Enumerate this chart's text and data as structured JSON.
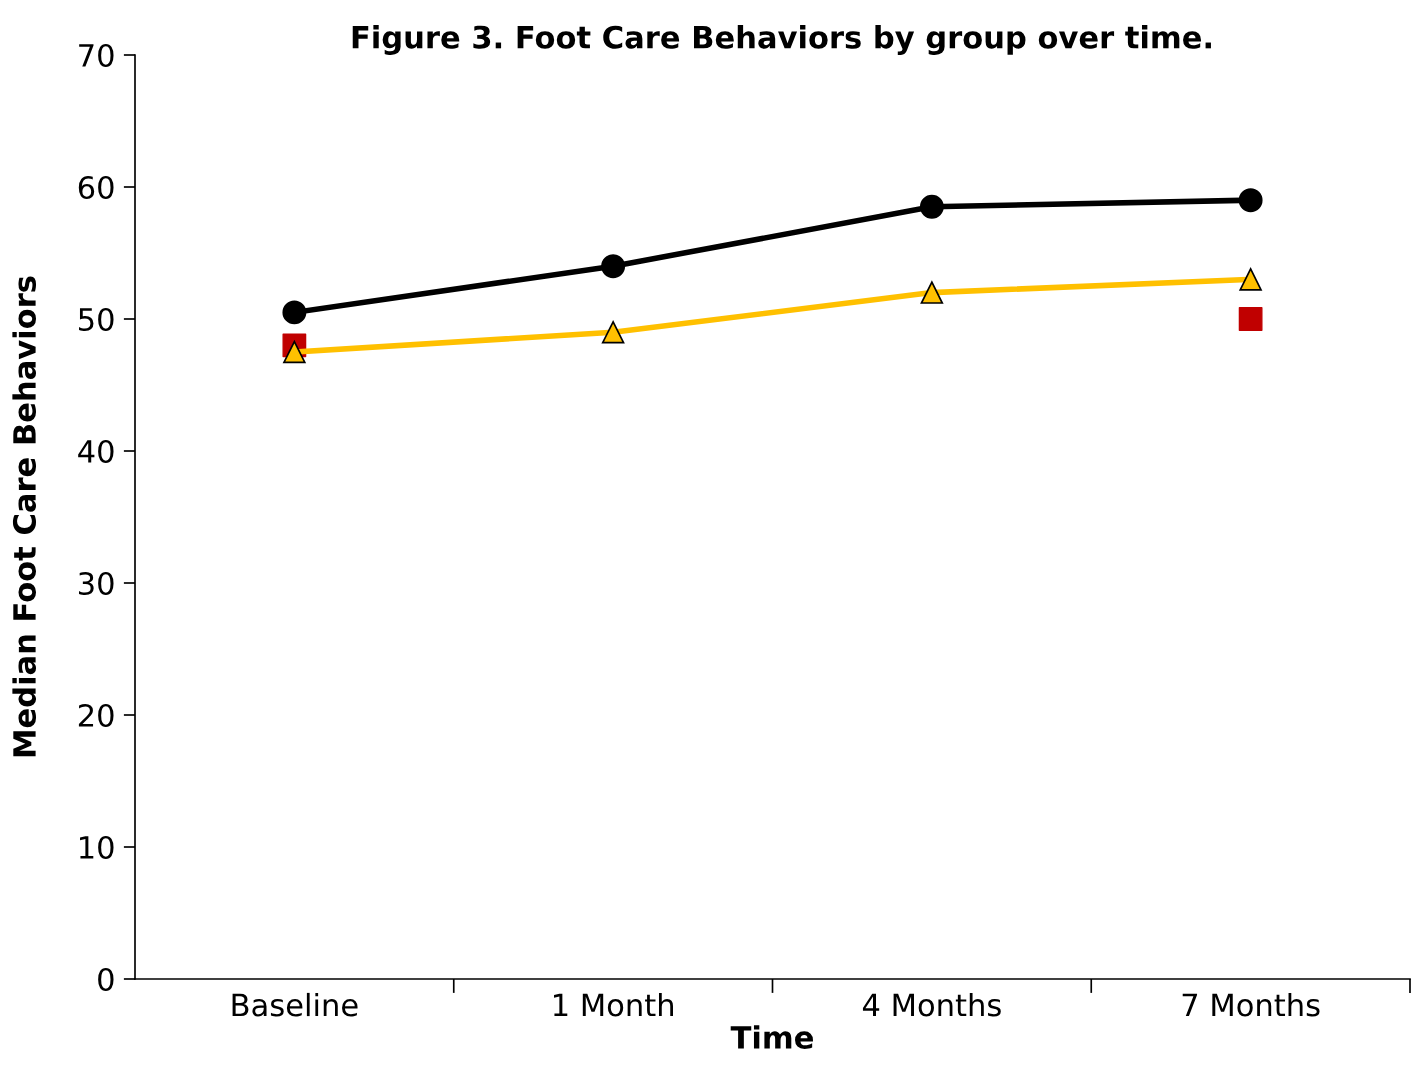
{
  "chart_data": {
    "type": "line",
    "title": "Figure 3. Foot Care Behaviors by group over time.",
    "xlabel": "Time",
    "ylabel": "Median Foot Care Behaviors",
    "categories": [
      "Baseline",
      "1 Month",
      "4 Months",
      "7 Months"
    ],
    "series": [
      {
        "color": "#000000",
        "marker": "circle",
        "values": [
          50.5,
          54,
          58.5,
          59
        ]
      },
      {
        "color": "#ffc000",
        "marker": "triangle",
        "values": [
          47.5,
          49,
          52,
          53
        ]
      },
      {
        "type": "scatter",
        "color": "#c00000",
        "marker": "square",
        "values": [
          48,
          null,
          null,
          50
        ]
      }
    ],
    "ylim": [
      0,
      70
    ],
    "yticks": [
      0,
      10,
      20,
      30,
      40,
      50,
      60,
      70
    ],
    "grid": false,
    "legend": false,
    "line_style": "solid"
  }
}
